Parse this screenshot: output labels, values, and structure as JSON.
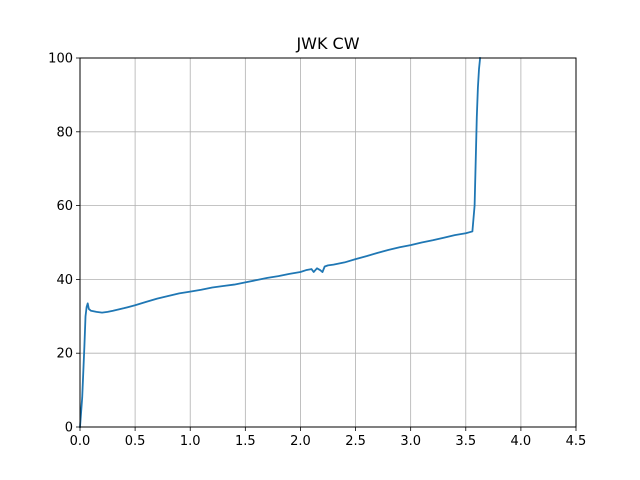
{
  "chart_data": {
    "type": "line",
    "title": "JWK CW",
    "xlabel": "",
    "ylabel": "",
    "xlim": [
      0,
      4.5
    ],
    "ylim": [
      0,
      100
    ],
    "x_ticks": [
      "0.0",
      "0.5",
      "1.0",
      "1.5",
      "2.0",
      "2.5",
      "3.0",
      "3.5",
      "4.0",
      "4.5"
    ],
    "y_ticks": [
      "0",
      "20",
      "40",
      "60",
      "80",
      "100"
    ],
    "grid": true,
    "legend": "none",
    "series": [
      {
        "color": "#1f77b4",
        "x": [
          0.0,
          0.02,
          0.04,
          0.05,
          0.06,
          0.07,
          0.08,
          0.1,
          0.15,
          0.2,
          0.25,
          0.3,
          0.4,
          0.5,
          0.6,
          0.7,
          0.8,
          0.9,
          1.0,
          1.1,
          1.2,
          1.3,
          1.4,
          1.5,
          1.6,
          1.7,
          1.8,
          1.9,
          2.0,
          2.05,
          2.1,
          2.12,
          2.15,
          2.18,
          2.2,
          2.22,
          2.25,
          2.3,
          2.4,
          2.5,
          2.6,
          2.7,
          2.8,
          2.9,
          3.0,
          3.1,
          3.2,
          3.3,
          3.4,
          3.5,
          3.56,
          3.58,
          3.59,
          3.6,
          3.61,
          3.62,
          3.63
        ],
        "y": [
          0.0,
          8.0,
          22.0,
          30.0,
          32.5,
          33.5,
          32.0,
          31.5,
          31.2,
          31.0,
          31.2,
          31.5,
          32.2,
          33.0,
          33.9,
          34.8,
          35.5,
          36.2,
          36.7,
          37.2,
          37.8,
          38.2,
          38.6,
          39.2,
          39.8,
          40.4,
          40.9,
          41.5,
          42.0,
          42.5,
          42.8,
          42.0,
          43.0,
          42.5,
          42.0,
          43.5,
          43.8,
          44.0,
          44.6,
          45.5,
          46.3,
          47.2,
          48.0,
          48.7,
          49.3,
          50.0,
          50.6,
          51.3,
          52.0,
          52.5,
          53.0,
          60.0,
          72.0,
          84.0,
          92.0,
          97.0,
          100.0
        ]
      }
    ]
  }
}
